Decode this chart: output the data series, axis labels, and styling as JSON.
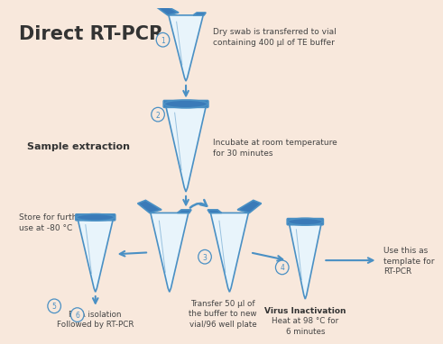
{
  "title": "Direct RT-PCR",
  "bg": "#f8e8dc",
  "tube_body": "#e8f4fb",
  "tube_fill": "#c5dff0",
  "tube_line": "#4a90c4",
  "tube_cap": "#3a7ab8",
  "tube_cap_dark": "#2a5a90",
  "arrow_color": "#4a90c4",
  "text_dark": "#333333",
  "text_color": "#444444",
  "circle_color": "#4a90c4",
  "label1": "Dry swab is transferred to vial\ncontaining 400 μl of TE buffer",
  "label2": "Incubate at room temperature\nfor 30 minutes",
  "label3": "Transfer 50 μl of\nthe buffer to new\nvial/96 well plate",
  "label4_bold": "Virus Inactivation",
  "label4_rest": "Heat at 98 °C for\n6 minutes",
  "label5": "Store for further\nuse at -80 °C",
  "label6": "RNA isolation\nFollowed by RT-PCR",
  "label_sample": "Sample extraction",
  "label_template": "Use this as\ntemplate for\nRT-PCR"
}
